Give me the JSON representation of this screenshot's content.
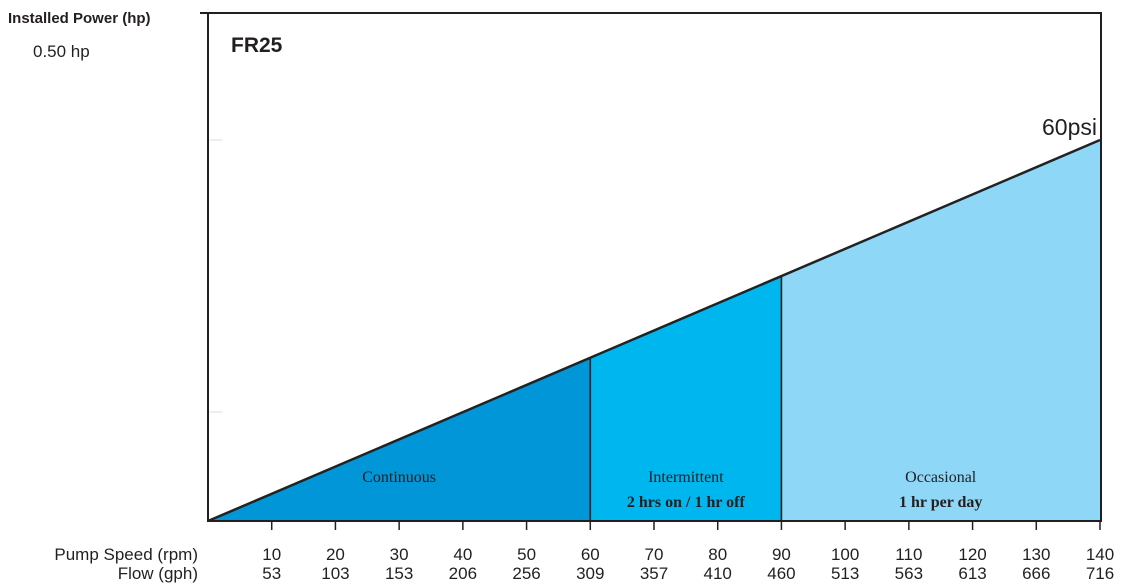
{
  "chart_data": {
    "type": "area",
    "title": "FR25",
    "ylabel": "Installed Power (hp)",
    "y_tick_label": "0.50 hp",
    "curve_label": "60psi",
    "row_labels": {
      "speed": "Pump Speed (rpm)",
      "flow": "Flow (gph)"
    },
    "x": [
      0,
      140
    ],
    "y": [
      0,
      0.375
    ],
    "xlim": [
      0,
      140
    ],
    "ylim": [
      0,
      0.5
    ],
    "speed_ticks": [
      "10",
      "20",
      "30",
      "40",
      "50",
      "60",
      "70",
      "80",
      "90",
      "100",
      "110",
      "120",
      "130",
      "140"
    ],
    "flow_ticks": [
      "53",
      "103",
      "153",
      "206",
      "256",
      "309",
      "357",
      "410",
      "460",
      "513",
      "563",
      "613",
      "666",
      "716"
    ],
    "regions": [
      {
        "name": "Continuous",
        "detail": "",
        "from": 0,
        "to": 60,
        "color": "#0096d8"
      },
      {
        "name": "Intermittent",
        "detail": "2 hrs on / 1 hr off",
        "from": 60,
        "to": 90,
        "color": "#00b6ee"
      },
      {
        "name": "Occasional",
        "detail": "1 hr per day",
        "from": 90,
        "to": 140,
        "color": "#8fd7f6"
      }
    ]
  }
}
